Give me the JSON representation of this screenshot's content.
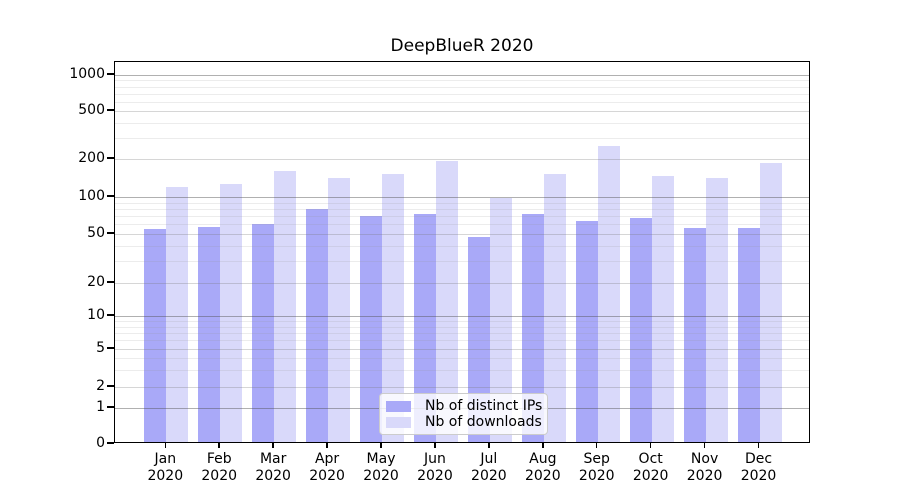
{
  "title": "DeepBlueR 2020",
  "chart_data": {
    "type": "bar",
    "title": "DeepBlueR 2020",
    "yscale": "symlog",
    "grid": "horizontal-major-and-minor",
    "legend_position": "lower-center",
    "background_color": "#ffffff",
    "categories": [
      "Jan",
      "Feb",
      "Mar",
      "Apr",
      "May",
      "Jun",
      "Jul",
      "Aug",
      "Sep",
      "Oct",
      "Nov",
      "Dec"
    ],
    "year": "2020",
    "y_ticks": [
      0,
      1,
      2,
      5,
      10,
      20,
      50,
      100,
      200,
      500,
      1000
    ],
    "ylim": [
      0,
      1400
    ],
    "series": [
      {
        "name": "Nb of distinct IPs",
        "color": "#a9a9f8",
        "values": [
          54,
          56,
          60,
          79,
          70,
          72,
          47,
          72,
          63,
          67,
          55,
          55
        ]
      },
      {
        "name": "Nb of downloads",
        "color": "#d9d9fa",
        "values": [
          120,
          126,
          160,
          140,
          150,
          192,
          97,
          152,
          255,
          145,
          140,
          185
        ]
      }
    ]
  }
}
